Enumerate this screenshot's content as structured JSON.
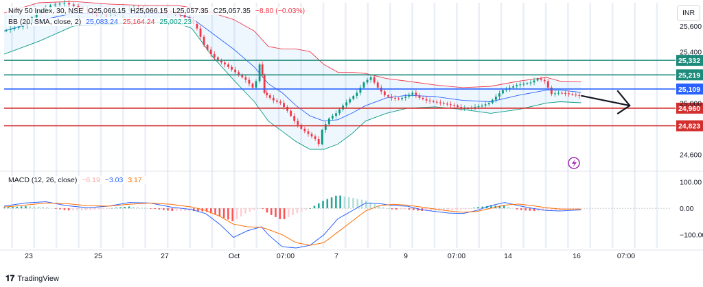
{
  "chart_data": [
    {
      "type": "candlestick",
      "title": "Nifty 50 Index, 30, NSE",
      "ohlc": {
        "o": "O25,066.15",
        "h": "H25,066.15",
        "l": "L25,057.35",
        "c": "C25,057.35",
        "chg": "−8.80 (−0.03%)"
      },
      "bb_label": "BB (20, SMA, close, 2)",
      "bb_values": [
        "25,083.24",
        "25,164.24",
        "25,002.23"
      ],
      "currency": "INR",
      "y_ticks": [
        "25,600",
        "25,400",
        "25,000",
        "24,600"
      ],
      "y_tick_values": [
        25600,
        25400,
        25000,
        24600
      ],
      "ylim": [
        24480,
        25780
      ],
      "levels": [
        {
          "label": "25,332",
          "value": 25332,
          "color": "#1e8a7a"
        },
        {
          "label": "25,219",
          "value": 25219,
          "color": "#1e8a7a"
        },
        {
          "label": "25,109",
          "value": 25109,
          "color": "#2962ff"
        },
        {
          "label": "24,960",
          "value": 24960,
          "color": "#d32f2f"
        },
        {
          "label": "24,823",
          "value": 24823,
          "color": "#d32f2f"
        }
      ],
      "x_labels": [
        "23",
        "25",
        "27",
        "Oct",
        "07:00",
        "7",
        "9",
        "07:00",
        "14",
        "16",
        "07:00"
      ],
      "close_path": [
        [
          0,
          25560
        ],
        [
          3,
          25600
        ],
        [
          5,
          25700
        ],
        [
          7,
          25760
        ],
        [
          9,
          25780
        ],
        [
          11,
          25740
        ],
        [
          13,
          25700
        ],
        [
          15,
          25690
        ],
        [
          17,
          25720
        ],
        [
          19,
          25740
        ],
        [
          21,
          25730
        ],
        [
          23,
          25720
        ],
        [
          25,
          25700
        ],
        [
          27,
          25650
        ],
        [
          28,
          25580
        ],
        [
          29,
          25450
        ],
        [
          30,
          25380
        ],
        [
          31,
          25330
        ],
        [
          32,
          25300
        ],
        [
          33,
          25260
        ],
        [
          34,
          25220
        ],
        [
          35,
          25180
        ],
        [
          36,
          25120
        ],
        [
          36.5,
          25170
        ],
        [
          37,
          25300
        ],
        [
          37.3,
          25220
        ],
        [
          37.6,
          25080
        ],
        [
          38,
          25060
        ],
        [
          39,
          25020
        ],
        [
          40,
          25000
        ],
        [
          41,
          24940
        ],
        [
          42,
          24860
        ],
        [
          43,
          24800
        ],
        [
          44,
          24760
        ],
        [
          45,
          24720
        ],
        [
          45.5,
          24680
        ],
        [
          46,
          24790
        ],
        [
          47,
          24880
        ],
        [
          48,
          24920
        ],
        [
          49,
          24980
        ],
        [
          50,
          25030
        ],
        [
          51,
          25080
        ],
        [
          52,
          25160
        ],
        [
          53,
          25200
        ],
        [
          54,
          25120
        ],
        [
          55,
          25060
        ],
        [
          56,
          25040
        ],
        [
          57,
          25030
        ],
        [
          58,
          25050
        ],
        [
          59,
          25080
        ],
        [
          60,
          25040
        ],
        [
          61,
          25020
        ],
        [
          62,
          25010
        ],
        [
          63,
          25000
        ],
        [
          64,
          24990
        ],
        [
          65,
          24980
        ],
        [
          66,
          24960
        ],
        [
          67,
          24960
        ],
        [
          68,
          24970
        ],
        [
          69,
          24980
        ],
        [
          70,
          25000
        ],
        [
          71,
          25050
        ],
        [
          72,
          25100
        ],
        [
          73,
          25120
        ],
        [
          74,
          25140
        ],
        [
          75,
          25150
        ],
        [
          76,
          25160
        ],
        [
          77,
          25190
        ],
        [
          78,
          25170
        ],
        [
          79,
          25070
        ],
        [
          80,
          25080
        ],
        [
          81,
          25075
        ],
        [
          82,
          25066
        ],
        [
          83,
          25057
        ]
      ],
      "bb_upper": [
        [
          0,
          25700
        ],
        [
          5,
          25780
        ],
        [
          10,
          25790
        ],
        [
          15,
          25770
        ],
        [
          20,
          25760
        ],
        [
          25,
          25760
        ],
        [
          27,
          25740
        ],
        [
          30,
          25700
        ],
        [
          33,
          25650
        ],
        [
          36,
          25560
        ],
        [
          38,
          25440
        ],
        [
          40,
          25420
        ],
        [
          42,
          25420
        ],
        [
          44,
          25400
        ],
        [
          46,
          25300
        ],
        [
          48,
          25240
        ],
        [
          50,
          25240
        ],
        [
          52,
          25230
        ],
        [
          55,
          25190
        ],
        [
          58,
          25170
        ],
        [
          62,
          25140
        ],
        [
          66,
          25120
        ],
        [
          70,
          25130
        ],
        [
          74,
          25170
        ],
        [
          78,
          25200
        ],
        [
          80,
          25170
        ],
        [
          83,
          25164
        ]
      ],
      "bb_mid": [
        [
          0,
          25560
        ],
        [
          5,
          25640
        ],
        [
          10,
          25700
        ],
        [
          15,
          25690
        ],
        [
          20,
          25700
        ],
        [
          25,
          25690
        ],
        [
          27,
          25660
        ],
        [
          30,
          25540
        ],
        [
          33,
          25420
        ],
        [
          36,
          25280
        ],
        [
          38,
          25150
        ],
        [
          40,
          25080
        ],
        [
          42,
          24980
        ],
        [
          44,
          24900
        ],
        [
          46,
          24860
        ],
        [
          48,
          24870
        ],
        [
          50,
          24920
        ],
        [
          52,
          24980
        ],
        [
          55,
          25040
        ],
        [
          58,
          25060
        ],
        [
          62,
          25050
        ],
        [
          66,
          25020
        ],
        [
          70,
          25010
        ],
        [
          74,
          25060
        ],
        [
          78,
          25100
        ],
        [
          80,
          25100
        ],
        [
          83,
          25083
        ]
      ],
      "bb_lower": [
        [
          0,
          25380
        ],
        [
          5,
          25480
        ],
        [
          10,
          25600
        ],
        [
          15,
          25610
        ],
        [
          20,
          25630
        ],
        [
          25,
          25620
        ],
        [
          27,
          25580
        ],
        [
          30,
          25360
        ],
        [
          33,
          25180
        ],
        [
          36,
          25010
        ],
        [
          38,
          24860
        ],
        [
          40,
          24780
        ],
        [
          42,
          24700
        ],
        [
          44,
          24640
        ],
        [
          46,
          24640
        ],
        [
          48,
          24680
        ],
        [
          50,
          24760
        ],
        [
          52,
          24860
        ],
        [
          55,
          24920
        ],
        [
          58,
          24960
        ],
        [
          62,
          24970
        ],
        [
          66,
          24950
        ],
        [
          70,
          24920
        ],
        [
          74,
          24950
        ],
        [
          78,
          25000
        ],
        [
          80,
          25010
        ],
        [
          83,
          25002
        ]
      ],
      "arrow": {
        "from": [
          83,
          25057
        ],
        "to": [
          90,
          24980
        ]
      }
    },
    {
      "type": "macd",
      "label": "MACD (12, 26, close)",
      "values": [
        "−6.19",
        "−3.03",
        "3.17"
      ],
      "y_ticks": [
        "100.00",
        "0.00",
        "−100.00"
      ],
      "y_tick_values": [
        100,
        0,
        -100
      ],
      "ylim": [
        -150,
        135
      ],
      "macd": [
        [
          0,
          8
        ],
        [
          3,
          20
        ],
        [
          6,
          25
        ],
        [
          9,
          10
        ],
        [
          12,
          2
        ],
        [
          15,
          8
        ],
        [
          18,
          22
        ],
        [
          21,
          20
        ],
        [
          24,
          5
        ],
        [
          27,
          -5
        ],
        [
          29,
          -20
        ],
        [
          31,
          -60
        ],
        [
          33,
          -110
        ],
        [
          35,
          -85
        ],
        [
          37,
          -70
        ],
        [
          38,
          -100
        ],
        [
          40,
          -145
        ],
        [
          42,
          -150
        ],
        [
          44,
          -140
        ],
        [
          46,
          -100
        ],
        [
          48,
          -40
        ],
        [
          50,
          -10
        ],
        [
          52,
          20
        ],
        [
          54,
          18
        ],
        [
          56,
          10
        ],
        [
          58,
          8
        ],
        [
          60,
          -5
        ],
        [
          62,
          -12
        ],
        [
          64,
          -18
        ],
        [
          66,
          -20
        ],
        [
          68,
          -8
        ],
        [
          70,
          10
        ],
        [
          72,
          22
        ],
        [
          74,
          10
        ],
        [
          76,
          0
        ],
        [
          78,
          -8
        ],
        [
          80,
          -10
        ],
        [
          83,
          -6
        ]
      ],
      "signal": [
        [
          0,
          5
        ],
        [
          3,
          12
        ],
        [
          6,
          20
        ],
        [
          9,
          18
        ],
        [
          12,
          10
        ],
        [
          15,
          8
        ],
        [
          18,
          15
        ],
        [
          21,
          20
        ],
        [
          24,
          15
        ],
        [
          27,
          5
        ],
        [
          29,
          -8
        ],
        [
          31,
          -30
        ],
        [
          33,
          -60
        ],
        [
          35,
          -70
        ],
        [
          37,
          -72
        ],
        [
          38,
          -80
        ],
        [
          40,
          -100
        ],
        [
          42,
          -130
        ],
        [
          44,
          -140
        ],
        [
          46,
          -130
        ],
        [
          48,
          -90
        ],
        [
          50,
          -50
        ],
        [
          52,
          -10
        ],
        [
          54,
          10
        ],
        [
          56,
          15
        ],
        [
          58,
          12
        ],
        [
          60,
          5
        ],
        [
          62,
          -3
        ],
        [
          64,
          -10
        ],
        [
          66,
          -15
        ],
        [
          68,
          -12
        ],
        [
          70,
          0
        ],
        [
          72,
          12
        ],
        [
          74,
          16
        ],
        [
          76,
          10
        ],
        [
          78,
          2
        ],
        [
          80,
          -3
        ],
        [
          83,
          -3
        ]
      ]
    }
  ],
  "footer_brand": "TradingView"
}
